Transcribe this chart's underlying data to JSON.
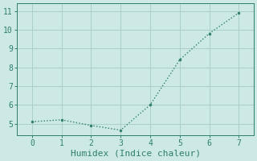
{
  "x": [
    0,
    1,
    2,
    3,
    4,
    5,
    6,
    7
  ],
  "y": [
    5.1,
    5.2,
    4.9,
    4.65,
    6.0,
    8.4,
    9.8,
    10.9
  ],
  "xlabel": "Humidex (Indice chaleur)",
  "xlim": [
    -0.5,
    7.5
  ],
  "ylim": [
    4.4,
    11.4
  ],
  "yticks": [
    5,
    6,
    7,
    8,
    9,
    10,
    11
  ],
  "xticks": [
    0,
    1,
    2,
    3,
    4,
    5,
    6,
    7
  ],
  "line_color": "#2e7d6e",
  "marker_color": "#2e7d6e",
  "bg_color": "#cce9e5",
  "grid_color": "#aacfcb",
  "font_family": "monospace",
  "tick_fontsize": 7,
  "label_fontsize": 8
}
